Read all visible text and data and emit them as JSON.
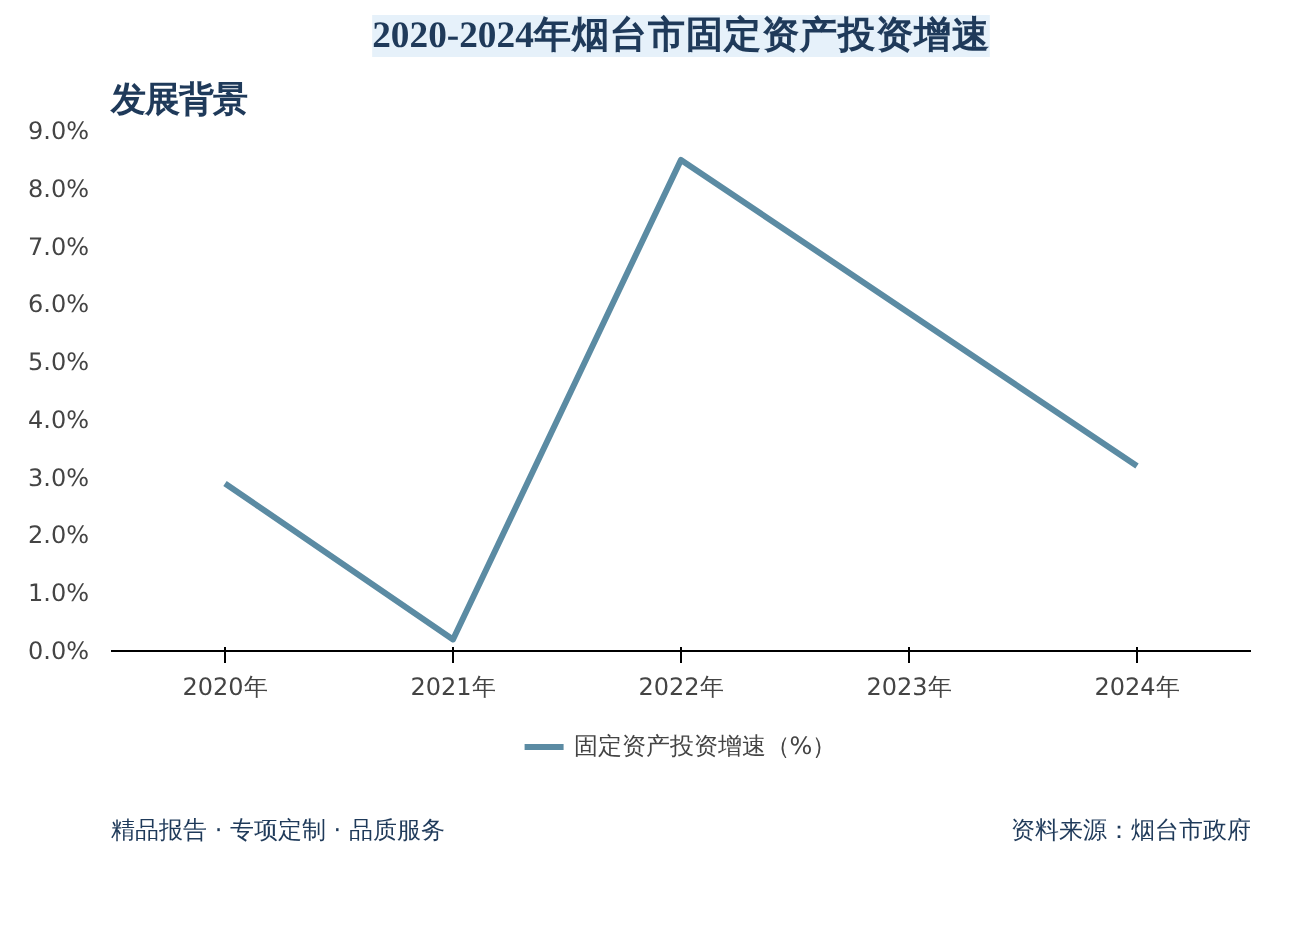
{
  "chart_data": {
    "type": "line",
    "title": "2020-2024年烟台市固定资产投资增速",
    "categories": [
      "2020年",
      "2021年",
      "2022年",
      "2023年",
      "2024年"
    ],
    "series": [
      {
        "name": "固定资产投资增速（%）",
        "color": "#5b8ba3",
        "values": [
          2.9,
          0.2,
          8.5,
          5.85,
          3.2
        ]
      }
    ],
    "ylim": [
      0,
      9
    ],
    "yticks": [
      {
        "value": 0,
        "label": "0.0%"
      },
      {
        "value": 1,
        "label": "1.0%"
      },
      {
        "value": 2,
        "label": "2.0%"
      },
      {
        "value": 3,
        "label": "3.0%"
      },
      {
        "value": 4,
        "label": "4.0%"
      },
      {
        "value": 5,
        "label": "5.0%"
      },
      {
        "value": 6,
        "label": "6.0%"
      },
      {
        "value": 7,
        "label": "7.0%"
      },
      {
        "value": 8,
        "label": "8.0%"
      },
      {
        "value": 9,
        "label": "9.0%"
      }
    ],
    "grid": false,
    "legend": "bottom",
    "marker": "none",
    "line_style": "solid",
    "annotations": [
      "发展背景",
      "精品报告 · 专项定制 · 品质服务",
      "资料来源：烟台市政府"
    ]
  }
}
